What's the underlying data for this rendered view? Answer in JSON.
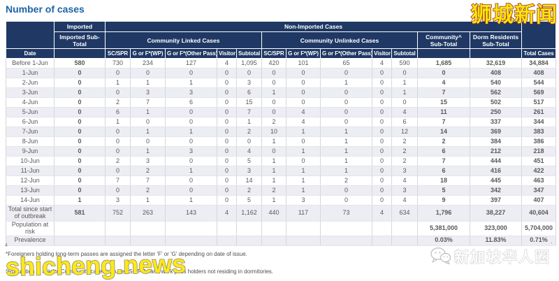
{
  "page": {
    "title": "Number of cases"
  },
  "watermarks": {
    "top_right": "狮城新闻",
    "bottom_left": "shicheng.news",
    "bottom_right": "新加坡华人圈",
    "corner_mark": "'"
  },
  "table": {
    "header": {
      "imported_group": "Imported",
      "non_imported_group": "Non-Imported Cases",
      "imported_subtotal": "Imported Sub-Total",
      "community_linked": "Community Linked Cases",
      "community_unlinked": "Community Unlinked Cases",
      "community_subtotal": "Community^ Sub-Total",
      "dorm_subtotal": "Dorm Residents Sub-Total",
      "date": "Date",
      "total_cases": "Total Cases",
      "sub_columns": [
        "SC/SPR",
        "G or F*(WP)",
        "G or F*(Other Pass)",
        "Visitor",
        "Subtotal",
        "SC/SPR",
        "G or F*(WP)",
        "G or F*(Other Pass)",
        "Visitor",
        "Subtotal"
      ]
    },
    "rows": [
      {
        "label": "Before 1-Jun",
        "cells": [
          "580",
          "730",
          "234",
          "127",
          "4",
          "1,095",
          "420",
          "101",
          "65",
          "4",
          "590",
          "1,685",
          "32,619",
          "34,884"
        ]
      },
      {
        "label": "1-Jun",
        "cells": [
          "0",
          "0",
          "0",
          "0",
          "0",
          "0",
          "0",
          "0",
          "0",
          "0",
          "0",
          "0",
          "408",
          "408"
        ]
      },
      {
        "label": "2-Jun",
        "cells": [
          "0",
          "1",
          "1",
          "1",
          "0",
          "3",
          "0",
          "0",
          "1",
          "0",
          "1",
          "4",
          "540",
          "544"
        ]
      },
      {
        "label": "3-Jun",
        "cells": [
          "0",
          "0",
          "3",
          "3",
          "0",
          "6",
          "1",
          "0",
          "0",
          "0",
          "1",
          "7",
          "562",
          "569"
        ]
      },
      {
        "label": "4-Jun",
        "cells": [
          "0",
          "2",
          "7",
          "6",
          "0",
          "15",
          "0",
          "0",
          "0",
          "0",
          "0",
          "15",
          "502",
          "517"
        ]
      },
      {
        "label": "5-Jun",
        "cells": [
          "0",
          "6",
          "1",
          "0",
          "0",
          "7",
          "0",
          "4",
          "0",
          "0",
          "4",
          "11",
          "250",
          "261"
        ]
      },
      {
        "label": "6-Jun",
        "cells": [
          "0",
          "1",
          "0",
          "0",
          "0",
          "1",
          "2",
          "4",
          "0",
          "0",
          "6",
          "7",
          "337",
          "344"
        ]
      },
      {
        "label": "7-Jun",
        "cells": [
          "0",
          "0",
          "1",
          "1",
          "0",
          "2",
          "10",
          "1",
          "1",
          "0",
          "12",
          "14",
          "369",
          "383"
        ]
      },
      {
        "label": "8-Jun",
        "cells": [
          "0",
          "0",
          "0",
          "0",
          "0",
          "0",
          "1",
          "0",
          "1",
          "0",
          "2",
          "2",
          "384",
          "386"
        ]
      },
      {
        "label": "9-Jun",
        "cells": [
          "0",
          "0",
          "1",
          "3",
          "0",
          "4",
          "0",
          "1",
          "1",
          "0",
          "2",
          "6",
          "212",
          "218"
        ]
      },
      {
        "label": "10-Jun",
        "cells": [
          "0",
          "2",
          "3",
          "0",
          "0",
          "5",
          "1",
          "0",
          "1",
          "0",
          "2",
          "7",
          "444",
          "451"
        ]
      },
      {
        "label": "11-Jun",
        "cells": [
          "0",
          "0",
          "2",
          "1",
          "0",
          "3",
          "1",
          "1",
          "1",
          "0",
          "3",
          "6",
          "416",
          "422"
        ]
      },
      {
        "label": "12-Jun",
        "cells": [
          "0",
          "7",
          "7",
          "0",
          "0",
          "14",
          "1",
          "1",
          "2",
          "0",
          "4",
          "18",
          "445",
          "463"
        ]
      },
      {
        "label": "13-Jun",
        "cells": [
          "0",
          "0",
          "2",
          "0",
          "0",
          "2",
          "2",
          "1",
          "0",
          "0",
          "3",
          "5",
          "342",
          "347"
        ]
      },
      {
        "label": "14-Jun",
        "cells": [
          "1",
          "3",
          "1",
          "1",
          "0",
          "5",
          "1",
          "3",
          "0",
          "0",
          "4",
          "9",
          "397",
          "407"
        ]
      },
      {
        "label": "Total since start of outbreak",
        "cells": [
          "581",
          "752",
          "263",
          "143",
          "4",
          "1,162",
          "440",
          "117",
          "73",
          "4",
          "634",
          "1,796",
          "38,227",
          "40,604"
        ]
      },
      {
        "label": "Population at risk",
        "cells": [
          "",
          "",
          "",
          "",
          "",
          "",
          "",
          "",
          "",
          "",
          "",
          "5,381,000",
          "323,000",
          "5,704,000"
        ]
      },
      {
        "label": "Prevalence",
        "cells": [
          "",
          "",
          "",
          "",
          "",
          "",
          "",
          "",
          "",
          "",
          "",
          "0.03%",
          "11.83%",
          "0.71%"
        ]
      }
    ]
  },
  "footnotes": {
    "marker": "4",
    "line1": "*Foreigners holding long-term passes are assigned the letter 'F' or 'G' depending on date of issue.",
    "line2": "^Population at risk for Community cases includes SC/PRs and work pass holders not residing in dormitories."
  }
}
